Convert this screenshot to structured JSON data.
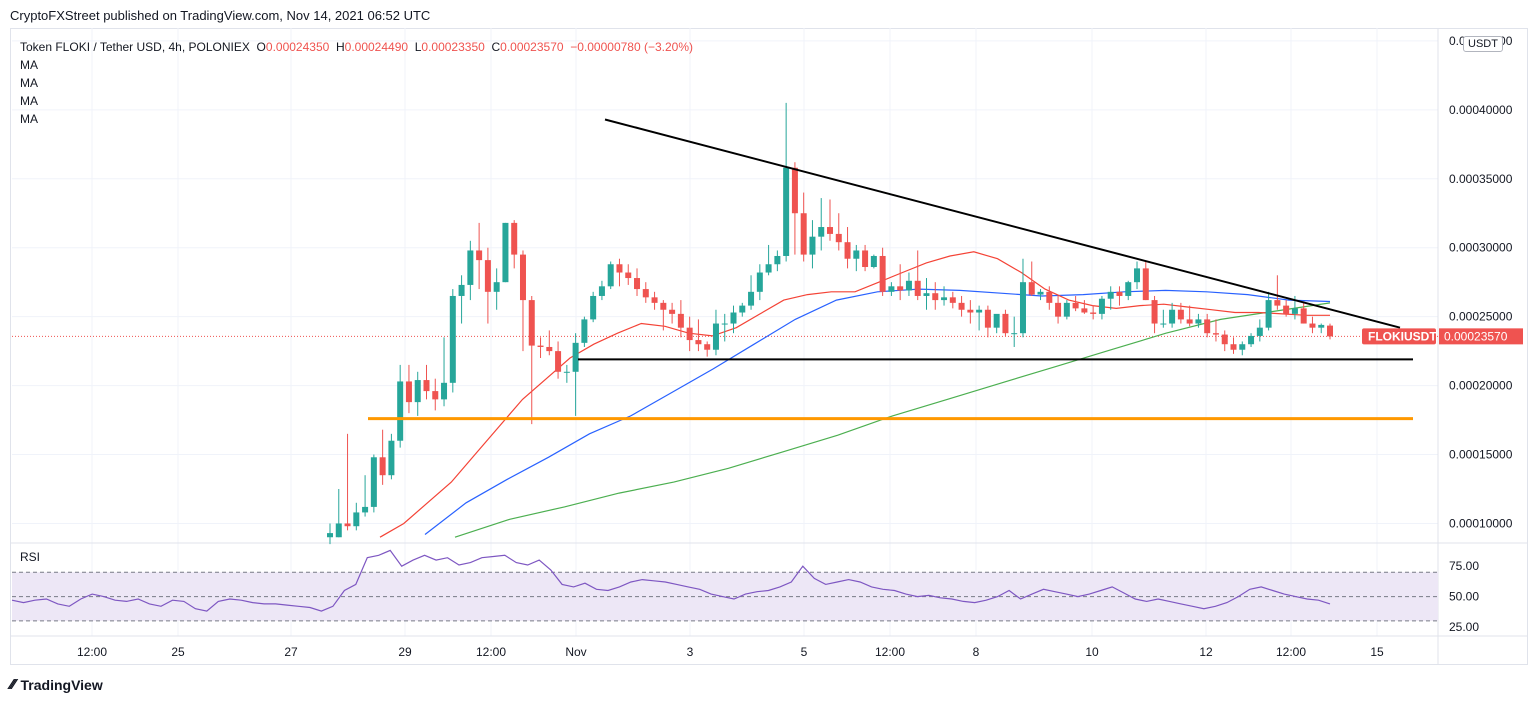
{
  "header": {
    "published_line": "CryptoFXStreet published on TradingView.com, Nov 14, 2021 06:52 UTC"
  },
  "legend": {
    "symbol_info": "Token FLOKI / Tether USD, 4h, POLONIEX",
    "o_key": "O",
    "o_val": "0.00024350",
    "h_key": "H",
    "h_val": "0.00024490",
    "l_key": "L",
    "l_val": "0.00023350",
    "c_key": "C",
    "c_val": "0.00023570",
    "change": "−0.00000780 (−3.20%)",
    "ma_labels": [
      "MA",
      "MA",
      "MA",
      "MA"
    ]
  },
  "rsi_label": "RSI",
  "currency_badge": "USDT",
  "footer": {
    "brand": "TradingView"
  },
  "colors": {
    "up": "#26a69a",
    "down": "#ef5350",
    "ma_red": "#f44336",
    "ma_blue": "#2962ff",
    "ma_green": "#4caf50",
    "support_orange": "#ff9800",
    "trendline": "#000000",
    "rsi_line": "#7e57c2",
    "rsi_band": "#ede7f6",
    "price_tag": "#ef5350"
  },
  "chart_data": [
    {
      "type": "candlestick",
      "symbol": "FLOKIUSDT",
      "last_price_label": "0.00023570",
      "y_ticks": [
        "0.00045000",
        "0.00040000",
        "0.00035000",
        "0.00030000",
        "0.00025000",
        "0.00020000",
        "0.00015000",
        "0.00010000"
      ],
      "y_tick_values": [
        0.00045,
        0.0004,
        0.00035,
        0.0003,
        0.00025,
        0.0002,
        0.00015,
        0.0001
      ],
      "ylim": [
        8.8e-05,
        0.000455
      ],
      "x_ticks": [
        "12:00",
        "25",
        "27",
        "29",
        "12:00",
        "Nov",
        "3",
        "5",
        "12:00",
        "8",
        "10",
        "12",
        "12:00",
        "15"
      ],
      "candles_ohlc": [
        [
          9e-05,
          0.0001,
          8.5e-05,
          9.3e-05
        ],
        [
          9e-05,
          0.000125,
          9e-05,
          0.0001
        ],
        [
          0.0001,
          0.000165,
          9.5e-05,
          9.8e-05
        ],
        [
          9.8e-05,
          0.000115,
          9.5e-05,
          0.000108
        ],
        [
          0.000108,
          0.000135,
          0.000105,
          0.000112
        ],
        [
          0.000112,
          0.00015,
          0.000108,
          0.000148
        ],
        [
          0.000148,
          0.000168,
          0.000128,
          0.000135
        ],
        [
          0.000135,
          0.000165,
          0.000132,
          0.00016
        ],
        [
          0.00016,
          0.000215,
          0.000155,
          0.000203
        ],
        [
          0.000203,
          0.000215,
          0.00018,
          0.000188
        ],
        [
          0.000188,
          0.00021,
          0.000178,
          0.000204
        ],
        [
          0.000204,
          0.000215,
          0.00019,
          0.000196
        ],
        [
          0.000196,
          0.000205,
          0.000182,
          0.00019
        ],
        [
          0.00019,
          0.000235,
          0.000185,
          0.000202
        ],
        [
          0.000202,
          0.00027,
          0.000195,
          0.000265
        ],
        [
          0.000265,
          0.00028,
          0.000245,
          0.000273
        ],
        [
          0.000273,
          0.000305,
          0.000262,
          0.000298
        ],
        [
          0.000298,
          0.000318,
          0.00027,
          0.000291
        ],
        [
          0.000291,
          0.0003,
          0.000245,
          0.000268
        ],
        [
          0.000268,
          0.000285,
          0.000255,
          0.000275
        ],
        [
          0.000275,
          0.000318,
          0.000275,
          0.000318
        ],
        [
          0.000318,
          0.00032,
          0.000285,
          0.000295
        ],
        [
          0.000295,
          0.000298,
          0.000225,
          0.000262
        ],
        [
          0.000262,
          0.000265,
          0.000172,
          0.000229
        ],
        [
          0.000229,
          0.000235,
          0.00022,
          0.000228
        ],
        [
          0.000228,
          0.00024,
          0.000222,
          0.000225
        ],
        [
          0.000225,
          0.000232,
          0.000205,
          0.00021
        ],
        [
          0.00021,
          0.000215,
          0.000202,
          0.00021
        ],
        [
          0.00021,
          0.000238,
          0.000178,
          0.000231
        ],
        [
          0.000231,
          0.00025,
          0.000228,
          0.000248
        ],
        [
          0.000248,
          0.000268,
          0.000246,
          0.000265
        ],
        [
          0.000265,
          0.000276,
          0.000262,
          0.000272
        ],
        [
          0.000272,
          0.00029,
          0.00027,
          0.000288
        ],
        [
          0.000288,
          0.000292,
          0.000272,
          0.000282
        ],
        [
          0.000282,
          0.000288,
          0.000273,
          0.000278
        ],
        [
          0.000278,
          0.000285,
          0.000265,
          0.00027
        ],
        [
          0.00027,
          0.000275,
          0.00026,
          0.000264
        ],
        [
          0.000264,
          0.000268,
          0.000255,
          0.00026
        ],
        [
          0.00026,
          0.000262,
          0.00024,
          0.000255
        ],
        [
          0.000255,
          0.00026,
          0.000245,
          0.000252
        ],
        [
          0.000252,
          0.000262,
          0.000235,
          0.000242
        ],
        [
          0.000242,
          0.00025,
          0.000225,
          0.000233
        ],
        [
          0.000233,
          0.000248,
          0.000225,
          0.00023
        ],
        [
          0.00023,
          0.000232,
          0.000221,
          0.000226
        ],
        [
          0.000226,
          0.000255,
          0.000222,
          0.000245
        ],
        [
          0.000245,
          0.000252,
          0.000232,
          0.000245
        ],
        [
          0.000245,
          0.000258,
          0.000238,
          0.000253
        ],
        [
          0.000253,
          0.00026,
          0.00025,
          0.000258
        ],
        [
          0.000258,
          0.00028,
          0.000255,
          0.000268
        ],
        [
          0.000268,
          0.000288,
          0.000262,
          0.000282
        ],
        [
          0.000282,
          0.000302,
          0.00028,
          0.000288
        ],
        [
          0.000288,
          0.000298,
          0.000283,
          0.000294
        ],
        [
          0.000294,
          0.000405,
          0.00029,
          0.000358
        ],
        [
          0.000358,
          0.000362,
          0.000295,
          0.000325
        ],
        [
          0.000325,
          0.00034,
          0.00029,
          0.000295
        ],
        [
          0.000295,
          0.00032,
          0.000285,
          0.000308
        ],
        [
          0.000308,
          0.000336,
          0.000298,
          0.000315
        ],
        [
          0.000315,
          0.000335,
          0.000305,
          0.00031
        ],
        [
          0.00031,
          0.000325,
          0.000298,
          0.000304
        ],
        [
          0.000304,
          0.000315,
          0.000285,
          0.000292
        ],
        [
          0.000292,
          0.000302,
          0.000283,
          0.000298
        ],
        [
          0.000298,
          0.000302,
          0.000283,
          0.000286
        ],
        [
          0.000286,
          0.000295,
          0.000285,
          0.000294
        ],
        [
          0.000294,
          0.0003,
          0.000265,
          0.000268
        ],
        [
          0.000268,
          0.000275,
          0.000265,
          0.000272
        ],
        [
          0.000272,
          0.000288,
          0.000262,
          0.000269
        ],
        [
          0.000269,
          0.000282,
          0.000265,
          0.000276
        ],
        [
          0.000276,
          0.000298,
          0.000262,
          0.000265
        ],
        [
          0.000265,
          0.000278,
          0.000255,
          0.000267
        ],
        [
          0.000267,
          0.000275,
          0.000255,
          0.000262
        ],
        [
          0.000262,
          0.000272,
          0.000258,
          0.000264
        ],
        [
          0.000264,
          0.000268,
          0.000256,
          0.00026
        ],
        [
          0.00026,
          0.000265,
          0.00025,
          0.000255
        ],
        [
          0.000255,
          0.000262,
          0.000245,
          0.000253
        ],
        [
          0.000253,
          0.000258,
          0.00024,
          0.000255
        ],
        [
          0.000255,
          0.000258,
          0.000235,
          0.000242
        ],
        [
          0.000242,
          0.00025,
          0.000238,
          0.000252
        ],
        [
          0.000252,
          0.000255,
          0.000236,
          0.000238
        ],
        [
          0.000238,
          0.00025,
          0.000228,
          0.000238
        ],
        [
          0.000238,
          0.000292,
          0.000235,
          0.000275
        ],
        [
          0.000275,
          0.00029,
          0.000265,
          0.000266
        ],
        [
          0.000266,
          0.00027,
          0.000262,
          0.000268
        ],
        [
          0.000268,
          0.000272,
          0.000255,
          0.00026
        ],
        [
          0.00026,
          0.000265,
          0.000245,
          0.00025
        ],
        [
          0.00025,
          0.000262,
          0.000248,
          0.00026
        ],
        [
          0.00026,
          0.000265,
          0.000254,
          0.000256
        ],
        [
          0.000256,
          0.000262,
          0.000252,
          0.000253
        ],
        [
          0.000253,
          0.000258,
          0.000248,
          0.000252
        ],
        [
          0.000252,
          0.000265,
          0.000248,
          0.000263
        ],
        [
          0.000263,
          0.000272,
          0.000255,
          0.000268
        ],
        [
          0.000268,
          0.000272,
          0.000258,
          0.000265
        ],
        [
          0.000265,
          0.000276,
          0.000262,
          0.000275
        ],
        [
          0.000275,
          0.00029,
          0.00027,
          0.000285
        ],
        [
          0.000285,
          0.00029,
          0.000262,
          0.000262
        ],
        [
          0.000262,
          0.000265,
          0.000238,
          0.000245
        ],
        [
          0.000245,
          0.000255,
          0.000242,
          0.000245
        ],
        [
          0.000245,
          0.00026,
          0.000242,
          0.000255
        ],
        [
          0.000255,
          0.00026,
          0.000245,
          0.000248
        ],
        [
          0.000248,
          0.000258,
          0.000243,
          0.000245
        ],
        [
          0.000245,
          0.000252,
          0.000242,
          0.000248
        ],
        [
          0.000248,
          0.000252,
          0.000235,
          0.000238
        ],
        [
          0.000238,
          0.000248,
          0.000232,
          0.000237
        ],
        [
          0.000237,
          0.00024,
          0.000225,
          0.00023
        ],
        [
          0.00023,
          0.000235,
          0.000223,
          0.000226
        ],
        [
          0.000226,
          0.000232,
          0.000222,
          0.00023
        ],
        [
          0.00023,
          0.000238,
          0.000228,
          0.000236
        ],
        [
          0.000236,
          0.000248,
          0.000232,
          0.000242
        ],
        [
          0.000242,
          0.000268,
          0.00024,
          0.000262
        ],
        [
          0.000262,
          0.00028,
          0.000255,
          0.000258
        ],
        [
          0.000258,
          0.000262,
          0.00025,
          0.000252
        ],
        [
          0.000252,
          0.000265,
          0.000248,
          0.000256
        ],
        [
          0.000256,
          0.00026,
          0.000245,
          0.000245
        ],
        [
          0.000245,
          0.00025,
          0.000238,
          0.000242
        ],
        [
          0.000242,
          0.000245,
          0.000238,
          0.000244
        ],
        [
          0.0002435,
          0.0002449,
          0.0002335,
          0.0002357
        ]
      ],
      "ma_red": [
        9e-05,
        0.0001,
        0.000115,
        0.00013,
        0.00015,
        0.00017,
        0.00019,
        0.000205,
        0.00022,
        0.00023,
        0.000238,
        0.000245,
        0.000243,
        0.000238,
        0.000236,
        0.000242,
        0.000252,
        0.000262,
        0.000266,
        0.000268,
        0.000268,
        0.000275,
        0.000282,
        0.000289,
        0.000294,
        0.000297,
        0.000292,
        0.000282,
        0.00027,
        0.000262,
        0.000258,
        0.000256,
        0.000258,
        0.000259,
        0.000257,
        0.000255,
        0.000253,
        0.000253,
        0.000252,
        0.000251,
        0.000251
      ],
      "ma_blue": [
        9.2e-05,
        0.000115,
        0.000132,
        0.000148,
        0.000165,
        0.000178,
        0.000195,
        0.000212,
        0.00023,
        0.000248,
        0.000262,
        0.000268,
        0.00027,
        0.000269,
        0.000267,
        0.000265,
        0.000266,
        0.000268,
        0.000269,
        0.000268,
        0.000266,
        0.000262,
        0.000261
      ],
      "ma_green": [
        9e-05,
        0.000103,
        0.000112,
        0.000122,
        0.00013,
        0.00014,
        0.000152,
        0.000164,
        0.000178,
        0.00019,
        0.000202,
        0.000214,
        0.000226,
        0.000238,
        0.000248,
        0.000254,
        0.00026
      ],
      "trendline_desc": [
        [
          0.000393,
          "start"
        ],
        [
          0.000242,
          "end"
        ]
      ],
      "horizontal_support_black": 0.000219,
      "horizontal_support_orange": 0.000176
    },
    {
      "type": "line",
      "name": "RSI",
      "y_ticks": [
        "75.00",
        "50.00",
        "25.00"
      ],
      "y_tick_values": [
        75,
        50,
        25
      ],
      "band": [
        30,
        70
      ],
      "ylim": [
        20,
        90
      ],
      "values": [
        47,
        45,
        47,
        48,
        44,
        42,
        48,
        52,
        50,
        47,
        46,
        48,
        44,
        42,
        47,
        46,
        40,
        38,
        46,
        48,
        47,
        45,
        44,
        44,
        43,
        42,
        41,
        38,
        42,
        55,
        60,
        82,
        84,
        88,
        75,
        80,
        84,
        80,
        82,
        76,
        78,
        82,
        83,
        84,
        78,
        76,
        80,
        72,
        60,
        58,
        61,
        56,
        55,
        58,
        62,
        64,
        63,
        62,
        60,
        58,
        56,
        52,
        50,
        48,
        52,
        54,
        55,
        58,
        62,
        75,
        65,
        60,
        62,
        64,
        62,
        58,
        56,
        55,
        52,
        50,
        51,
        49,
        48,
        46,
        45,
        47,
        50,
        55,
        48,
        52,
        56,
        54,
        52,
        50,
        52,
        55,
        58,
        53,
        48,
        46,
        48,
        46,
        44,
        42,
        40,
        42,
        45,
        50,
        56,
        58,
        55,
        52,
        50,
        48,
        47,
        44
      ]
    }
  ]
}
